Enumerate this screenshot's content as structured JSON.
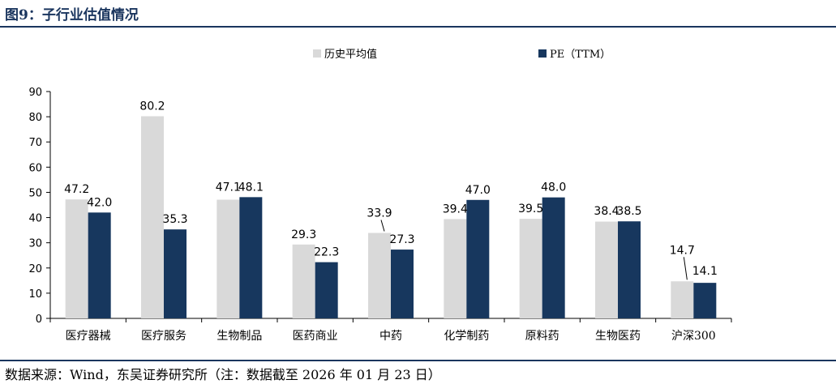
{
  "figure": {
    "title": "图9：子行业估值情况",
    "source": "数据来源：Wind，东吴证券研究所（注：数据截至 2026 年 01 月 23 日）"
  },
  "colors": {
    "accent": "#1a355e",
    "series_hist": "#d9d9d9",
    "series_pe": "#17375e"
  },
  "chart_data": {
    "type": "bar",
    "title": "",
    "xlabel": "",
    "ylabel": "",
    "ylim": [
      0,
      90
    ],
    "yticks": [
      0,
      10,
      20,
      30,
      40,
      50,
      60,
      70,
      80,
      90
    ],
    "grid": false,
    "legend": "top-center",
    "categories": [
      "医疗器械",
      "医疗服务",
      "生物制品",
      "医药商业",
      "中药",
      "化学制药",
      "原料药",
      "生物医药",
      "沪深300"
    ],
    "series": [
      {
        "name": "历史平均值",
        "values": [
          47.2,
          80.2,
          47.1,
          29.3,
          33.9,
          39.4,
          39.5,
          38.4,
          14.7
        ],
        "labels": [
          "47.2",
          "80.2",
          "47.1",
          "29.3",
          "33.9",
          "39.4",
          "39.5",
          "38.4",
          "14.7"
        ]
      },
      {
        "name": "PE（TTM）",
        "values": [
          42.0,
          35.3,
          48.1,
          22.3,
          27.3,
          47.0,
          48.0,
          38.5,
          14.1
        ],
        "labels": [
          "42.0",
          "35.3",
          "48.1",
          "22.3",
          "27.3",
          "47.0",
          "48.0",
          "38.5",
          "14.1"
        ]
      }
    ]
  }
}
